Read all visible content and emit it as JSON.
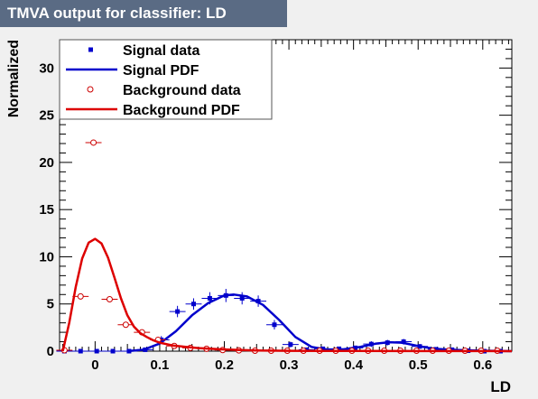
{
  "title": "TMVA output for classifier: LD",
  "chart_data": {
    "type": "scatter",
    "xlabel": "LD",
    "ylabel": "Normalized",
    "xlim": [
      -0.055,
      0.645
    ],
    "ylim": [
      0,
      33
    ],
    "x_ticks": [
      0,
      0.1,
      0.2,
      0.3,
      0.4,
      0.5,
      0.6
    ],
    "x_tick_labels": [
      "0",
      "0.1",
      "0.2",
      "0.3",
      "0.4",
      "0.5",
      "0.6"
    ],
    "y_ticks": [
      0,
      5,
      10,
      15,
      20,
      25,
      30
    ],
    "y_tick_labels": [
      "0",
      "5",
      "10",
      "15",
      "20",
      "25",
      "30"
    ],
    "grid": false,
    "legend_position": "top-left",
    "bin_half_width": 0.0125,
    "series": [
      {
        "name": "Signal data",
        "kind": "points",
        "marker": "square",
        "color": "#0000cc",
        "x": [
          -0.0475,
          -0.0225,
          0.0025,
          0.0275,
          0.0525,
          0.0775,
          0.1025,
          0.1275,
          0.1525,
          0.1775,
          0.2025,
          0.2275,
          0.2525,
          0.2775,
          0.3025,
          0.3275,
          0.3525,
          0.3775,
          0.4025,
          0.4275,
          0.4525,
          0.4775,
          0.5025,
          0.5275,
          0.5525,
          0.5775,
          0.6025,
          0.6275
        ],
        "y": [
          0,
          0,
          0,
          0,
          0,
          0.15,
          1.2,
          4.2,
          5.0,
          5.6,
          5.9,
          5.6,
          5.3,
          2.8,
          0.7,
          0.15,
          0.25,
          0.25,
          0.35,
          0.75,
          0.9,
          1.0,
          0.5,
          0.2,
          0.15,
          0.05,
          0,
          0
        ],
        "yerr": [
          0,
          0,
          0,
          0,
          0,
          0.2,
          0.4,
          0.6,
          0.6,
          0.65,
          0.7,
          0.65,
          0.6,
          0.5,
          0.3,
          0.2,
          0.2,
          0.2,
          0.2,
          0.3,
          0.3,
          0.3,
          0.25,
          0.2,
          0.15,
          0.1,
          0,
          0
        ]
      },
      {
        "name": "Signal PDF",
        "kind": "line",
        "color": "#0000cc",
        "x": [
          0.05,
          0.075,
          0.1,
          0.125,
          0.15,
          0.175,
          0.2,
          0.215,
          0.235,
          0.26,
          0.285,
          0.31,
          0.335,
          0.36,
          0.385,
          0.41,
          0.435,
          0.455,
          0.475,
          0.5,
          0.525,
          0.55,
          0.575,
          0.6,
          0.625,
          0.645
        ],
        "y": [
          0,
          0.15,
          0.8,
          2.1,
          3.8,
          5.1,
          5.9,
          6.0,
          5.8,
          4.9,
          3.3,
          1.5,
          0.45,
          0.15,
          0.2,
          0.45,
          0.8,
          0.95,
          0.9,
          0.55,
          0.25,
          0.15,
          0.1,
          0.05,
          0.02,
          0
        ]
      },
      {
        "name": "Background data",
        "kind": "points",
        "marker": "open-circle",
        "color": "#cc0000",
        "x": [
          -0.0475,
          -0.0225,
          -0.0025,
          0.0225,
          0.0475,
          0.0725,
          0.0975,
          0.1225,
          0.1475,
          0.1725,
          0.1975,
          0.2225,
          0.2475,
          0.2725,
          0.2975,
          0.3225,
          0.3475,
          0.3725,
          0.3975,
          0.4225,
          0.4475,
          0.4725,
          0.4975,
          0.5225,
          0.5475,
          0.5725,
          0.5975,
          0.6225
        ],
        "y": [
          0.1,
          5.8,
          22.1,
          5.5,
          2.8,
          2.0,
          1.2,
          0.55,
          0.35,
          0.25,
          0.12,
          0.08,
          0.05,
          0.05,
          0.05,
          0.05,
          0.05,
          0.05,
          0.05,
          0.05,
          0.05,
          0.05,
          0.05,
          0.05,
          0.05,
          0.05,
          0.05,
          0.05
        ],
        "yerr": [
          0,
          0,
          0,
          0,
          0,
          0,
          0,
          0,
          0,
          0,
          0,
          0,
          0,
          0,
          0,
          0,
          0,
          0,
          0,
          0,
          0,
          0,
          0,
          0,
          0,
          0,
          0,
          0
        ]
      },
      {
        "name": "Background PDF",
        "kind": "line",
        "color": "#dd0000",
        "x": [
          -0.05,
          -0.04,
          -0.03,
          -0.02,
          -0.01,
          0,
          0.01,
          0.02,
          0.03,
          0.04,
          0.05,
          0.06,
          0.07,
          0.08,
          0.09,
          0.1,
          0.12,
          0.14,
          0.16,
          0.18,
          0.2,
          0.22,
          0.25,
          0.3,
          0.35,
          0.4,
          0.5,
          0.6,
          0.645
        ],
        "y": [
          0,
          3.0,
          6.8,
          9.8,
          11.5,
          11.9,
          11.4,
          9.9,
          7.8,
          5.6,
          3.8,
          2.6,
          1.9,
          1.5,
          1.15,
          0.9,
          0.6,
          0.45,
          0.33,
          0.25,
          0.18,
          0.13,
          0.08,
          0.04,
          0.03,
          0.02,
          0.01,
          0.005,
          0
        ]
      }
    ]
  }
}
